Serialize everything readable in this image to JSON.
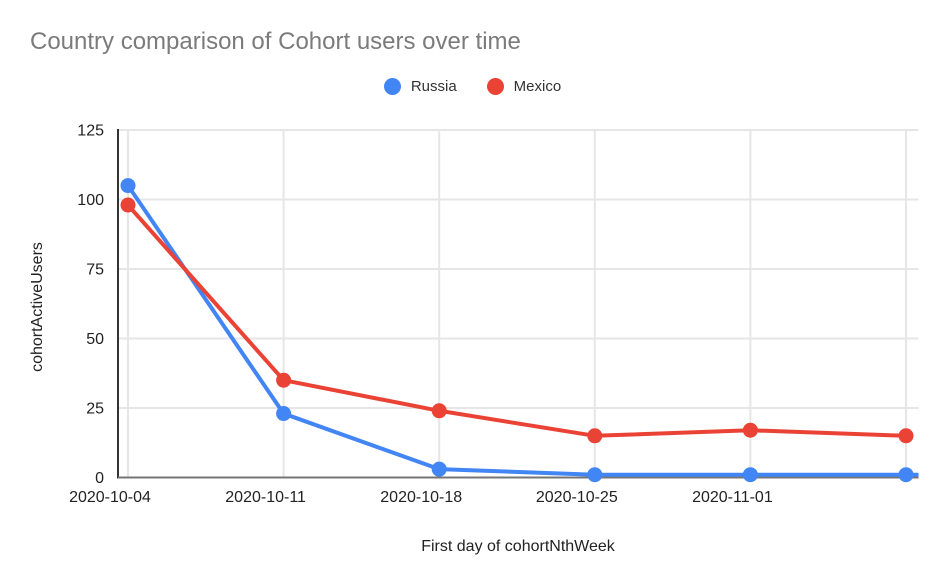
{
  "chart_data": {
    "type": "line",
    "title": "Country comparison of Cohort users over time",
    "xlabel": "First day of cohortNthWeek",
    "ylabel": "cohortActiveUsers",
    "categories": [
      "2020-10-04",
      "2020-10-11",
      "2020-10-18",
      "2020-10-25",
      "2020-11-01",
      ""
    ],
    "series": [
      {
        "name": "Russia",
        "color": "#4285F4",
        "values": [
          105,
          23,
          3,
          1,
          1,
          1
        ],
        "line_extends_to_plot_edge": true
      },
      {
        "name": "Mexico",
        "color": "#EA4335",
        "values": [
          98,
          35,
          24,
          15,
          17,
          15
        ],
        "line_extends_to_plot_edge": false
      }
    ],
    "y_ticks": [
      0,
      25,
      50,
      75,
      100,
      125
    ],
    "ylim": [
      0,
      125
    ],
    "grid": true,
    "legend_position": "top",
    "colors": {
      "title_text": "#7b7b7b",
      "tick_text": "#222222",
      "gridline": "#e6e6e6",
      "y_axis_line": "#333333",
      "x_baseline": "#757575",
      "background": "#ffffff"
    }
  }
}
